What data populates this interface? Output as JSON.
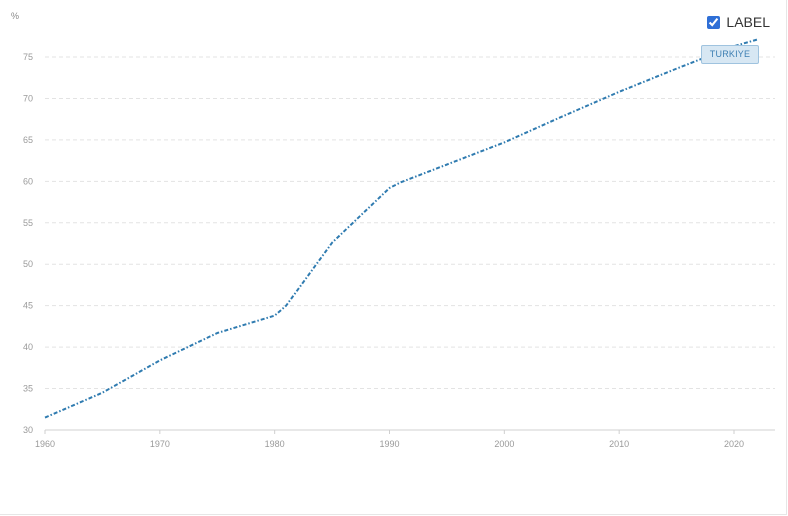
{
  "legend": {
    "checkbox_label": "LABEL",
    "checked": true
  },
  "colors": {
    "series": "#2f7bb0",
    "grid": "#e3e3e3",
    "tag_bg": "#d7e7f3"
  },
  "chart_data": {
    "type": "line",
    "ylabel": "%",
    "xlim": [
      1960,
      2023
    ],
    "ylim": [
      30,
      78
    ],
    "x_ticks": [
      "1960",
      "1970",
      "1980",
      "1990",
      "2000",
      "2010",
      "2020"
    ],
    "y_ticks": [
      "30",
      "35",
      "40",
      "45",
      "50",
      "55",
      "60",
      "65",
      "70",
      "75"
    ],
    "grid": "horizontal dashed",
    "series": [
      {
        "name": "TURKIYE",
        "line_style": "dash-dot",
        "x": [
          1960,
          1965,
          1970,
          1975,
          1980,
          1981,
          1985,
          1990,
          1991,
          2000,
          2005,
          2010,
          2015,
          2020,
          2022
        ],
        "y": [
          31.5,
          34.5,
          38.4,
          41.7,
          43.8,
          45.0,
          52.6,
          59.2,
          59.9,
          64.7,
          67.8,
          70.8,
          73.6,
          76.3,
          77.1
        ]
      }
    ],
    "series_tag": "TURKIYE"
  }
}
